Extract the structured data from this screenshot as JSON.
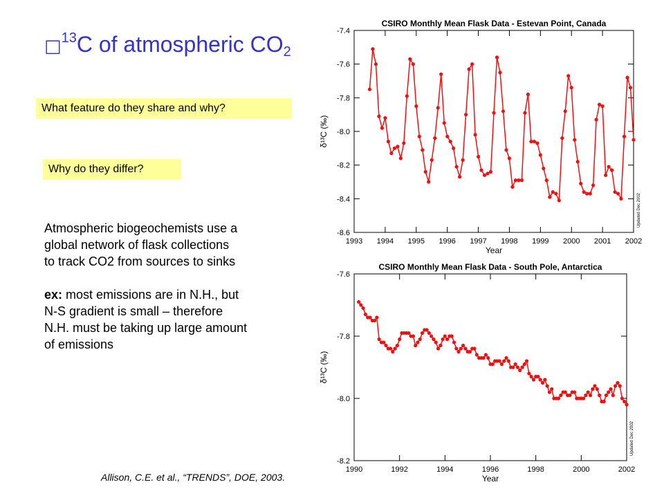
{
  "slide": {
    "title_glyph": "□",
    "title_sup": "13",
    "title_main": "C  of atmospheric CO",
    "title_sub": "2",
    "question1": "What feature do they share and why?",
    "question2": "Why do they differ?",
    "paragraph1": [
      "Atmospheric biogeochemists use a",
      "global network of flask collections",
      "to track CO2 from sources to sinks"
    ],
    "paragraph2_lead": "ex:",
    "paragraph2_first": " most emissions are in N.H., but",
    "paragraph2_rest": [
      "N-S gradient is small – therefore",
      "N.H. must be taking up large amount",
      "of emissions"
    ],
    "citation": "Allison, C.E. et al., “TRENDS”, DOE, 2003."
  },
  "chart_data": [
    {
      "type": "line",
      "title": "CSIRO Monthly Mean Flask Data - Estevan Point, Canada",
      "xlabel": "Year",
      "ylabel": "δ¹³C (‰)",
      "side_note": "Updated Dec 2002",
      "xlim": [
        1993.0,
        2002.0
      ],
      "ylim": [
        -8.6,
        -7.4
      ],
      "xticks": [
        1993,
        1994,
        1995,
        1996,
        1997,
        1998,
        1999,
        2000,
        2001,
        2002
      ],
      "yticks": [
        -7.4,
        -7.6,
        -7.8,
        -8.0,
        -8.2,
        -8.4,
        -8.6
      ],
      "ytick_labels": [
        "-7.4",
        "-7.6",
        "-7.8",
        "-8.0",
        "-8.2",
        "-8.4",
        "-8.6"
      ],
      "color": "#ee1111",
      "markers": true,
      "series": [
        {
          "x": [
            1993.5,
            1993.6,
            1993.7,
            1993.8,
            1993.9,
            1994.0,
            1994.1,
            1994.2,
            1994.3,
            1994.4,
            1994.5,
            1994.6,
            1994.7,
            1994.8,
            1994.9,
            1995.0,
            1995.1,
            1995.2,
            1995.3,
            1995.4,
            1995.5,
            1995.6,
            1995.7,
            1995.8,
            1995.9,
            1996.0,
            1996.1,
            1996.2,
            1996.3,
            1996.4,
            1996.5,
            1996.6,
            1996.7,
            1996.8,
            1996.9,
            1997.0,
            1997.1,
            1997.2,
            1997.3,
            1997.4,
            1997.5,
            1997.6,
            1997.7,
            1997.8,
            1997.9,
            1998.0,
            1998.1,
            1998.2,
            1998.3,
            1998.4,
            1998.5,
            1998.6,
            1998.7,
            1998.8,
            1998.9,
            1999.0,
            1999.1,
            1999.2,
            1999.3,
            1999.4,
            1999.5,
            1999.6,
            1999.7,
            1999.8,
            1999.9,
            2000.0,
            2000.1,
            2000.2,
            2000.3,
            2000.4,
            2000.5,
            2000.6,
            2000.7,
            2000.8,
            2000.9,
            2001.0,
            2001.1,
            2001.2,
            2001.3,
            2001.4,
            2001.5,
            2001.6,
            2001.7,
            2001.8,
            2001.9,
            2002.0
          ],
          "y": [
            -7.75,
            -7.51,
            -7.6,
            -7.91,
            -7.98,
            -7.92,
            -8.06,
            -8.13,
            -8.1,
            -8.09,
            -8.16,
            -8.07,
            -7.79,
            -7.57,
            -7.6,
            -7.85,
            -8.03,
            -8.11,
            -8.24,
            -8.3,
            -8.17,
            -8.04,
            -7.86,
            -7.66,
            -7.95,
            -8.03,
            -8.06,
            -8.1,
            -8.21,
            -8.27,
            -8.17,
            -7.9,
            -7.63,
            -7.6,
            -8.02,
            -8.15,
            -8.23,
            -8.26,
            -8.25,
            -8.24,
            -7.89,
            -7.56,
            -7.65,
            -7.88,
            -8.11,
            -8.16,
            -8.33,
            -8.29,
            -8.29,
            -8.29,
            -7.89,
            -7.78,
            -8.06,
            -8.06,
            -8.07,
            -8.14,
            -8.22,
            -8.29,
            -8.39,
            -8.36,
            -8.37,
            -8.41,
            -8.04,
            -7.88,
            -7.67,
            -7.74,
            -8.05,
            -8.18,
            -8.31,
            -8.36,
            -8.37,
            -8.37,
            -8.32,
            -7.93,
            -7.84,
            -7.85,
            -8.26,
            -8.21,
            -8.23,
            -8.36,
            -8.37,
            -8.4,
            -8.03,
            -7.68,
            -7.74,
            -8.05
          ]
        }
      ]
    },
    {
      "type": "line",
      "title": "CSIRO Monthly Mean Flask Data - South Pole, Antarctica",
      "xlabel": "Year",
      "ylabel": "δ¹³C (‰)",
      "side_note": "Updated Dec 2002",
      "xlim": [
        1990.0,
        2002.0
      ],
      "ylim": [
        -8.2,
        -7.6
      ],
      "xticks": [
        1990,
        1992,
        1994,
        1996,
        1998,
        2000,
        2002
      ],
      "yticks": [
        -7.6,
        -7.8,
        -8.0,
        -8.2
      ],
      "ytick_labels": [
        "-7.6",
        "-7.8",
        "-8.0",
        "-8.2"
      ],
      "color": "#ee1111",
      "markers": true,
      "series": [
        {
          "x": [
            1990.2,
            1990.3,
            1990.4,
            1990.5,
            1990.6,
            1990.7,
            1990.8,
            1990.9,
            1991.0,
            1991.1,
            1991.2,
            1991.3,
            1991.4,
            1991.5,
            1991.6,
            1991.7,
            1991.8,
            1991.9,
            1992.0,
            1992.1,
            1992.2,
            1992.3,
            1992.4,
            1992.5,
            1992.6,
            1992.7,
            1992.8,
            1992.9,
            1993.0,
            1993.1,
            1993.2,
            1993.3,
            1993.4,
            1993.5,
            1993.6,
            1993.7,
            1993.8,
            1993.9,
            1994.0,
            1994.1,
            1994.2,
            1994.3,
            1994.4,
            1994.5,
            1994.6,
            1994.7,
            1994.8,
            1994.9,
            1995.0,
            1995.1,
            1995.2,
            1995.3,
            1995.4,
            1995.5,
            1995.6,
            1995.7,
            1995.8,
            1995.9,
            1996.0,
            1996.1,
            1996.2,
            1996.3,
            1996.4,
            1996.5,
            1996.6,
            1996.7,
            1996.8,
            1996.9,
            1997.0,
            1997.1,
            1997.2,
            1997.3,
            1997.4,
            1997.5,
            1997.6,
            1997.7,
            1997.8,
            1997.9,
            1998.0,
            1998.1,
            1998.2,
            1998.3,
            1998.4,
            1998.5,
            1998.6,
            1998.7,
            1998.8,
            1998.9,
            1999.0,
            1999.1,
            1999.2,
            1999.3,
            1999.4,
            1999.5,
            1999.6,
            1999.7,
            1999.8,
            1999.9,
            2000.0,
            2000.1,
            2000.2,
            2000.3,
            2000.4,
            2000.5,
            2000.6,
            2000.7,
            2000.8,
            2000.9,
            2001.0,
            2001.1,
            2001.2,
            2001.3,
            2001.4,
            2001.5,
            2001.6,
            2001.7,
            2001.8,
            2001.9,
            2002.0
          ],
          "y": [
            -7.69,
            -7.7,
            -7.71,
            -7.73,
            -7.74,
            -7.74,
            -7.75,
            -7.75,
            -7.74,
            -7.81,
            -7.82,
            -7.82,
            -7.83,
            -7.84,
            -7.84,
            -7.85,
            -7.84,
            -7.83,
            -7.81,
            -7.79,
            -7.79,
            -7.79,
            -7.79,
            -7.8,
            -7.8,
            -7.83,
            -7.82,
            -7.81,
            -7.79,
            -7.78,
            -7.78,
            -7.79,
            -7.8,
            -7.81,
            -7.82,
            -7.84,
            -7.83,
            -7.81,
            -7.8,
            -7.81,
            -7.8,
            -7.8,
            -7.82,
            -7.84,
            -7.85,
            -7.84,
            -7.83,
            -7.84,
            -7.85,
            -7.85,
            -7.84,
            -7.84,
            -7.86,
            -7.87,
            -7.87,
            -7.87,
            -7.86,
            -7.87,
            -7.89,
            -7.89,
            -7.88,
            -7.88,
            -7.88,
            -7.89,
            -7.88,
            -7.87,
            -7.88,
            -7.9,
            -7.9,
            -7.89,
            -7.9,
            -7.91,
            -7.9,
            -7.89,
            -7.88,
            -7.92,
            -7.93,
            -7.94,
            -7.93,
            -7.93,
            -7.94,
            -7.95,
            -7.94,
            -7.96,
            -7.98,
            -7.97,
            -8.0,
            -8.0,
            -8.0,
            -7.99,
            -7.98,
            -7.98,
            -7.99,
            -7.99,
            -7.98,
            -7.98,
            -8.0,
            -8.0,
            -8.0,
            -8.0,
            -7.99,
            -7.98,
            -7.99,
            -7.97,
            -7.96,
            -7.97,
            -7.99,
            -8.01,
            -8.01,
            -7.99,
            -7.98,
            -7.97,
            -7.99,
            -7.96,
            -7.95,
            -7.96,
            -8.0,
            -8.01,
            -8.02
          ]
        }
      ]
    }
  ]
}
